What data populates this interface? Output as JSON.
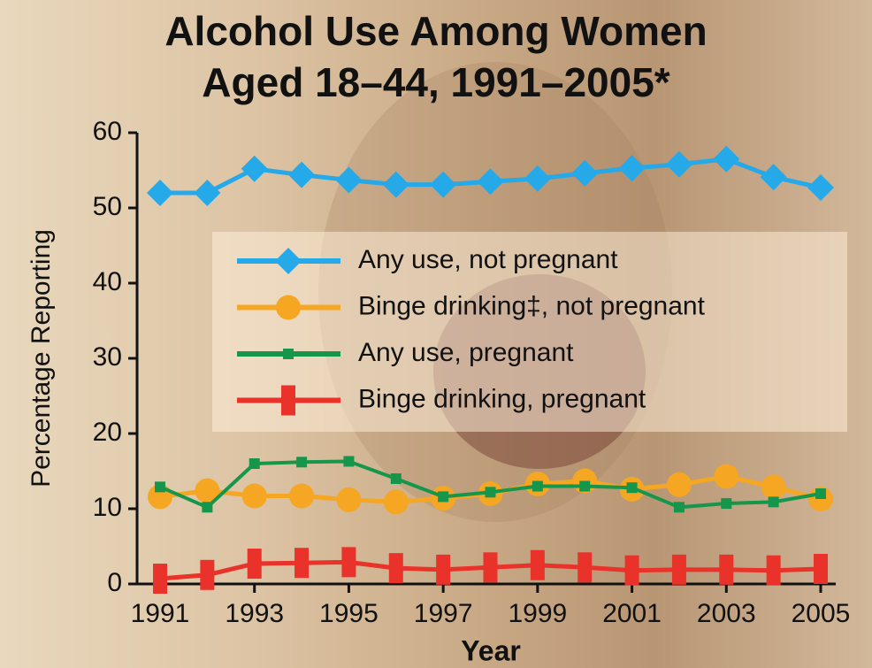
{
  "chart_data": {
    "type": "line",
    "title": "Alcohol Use Among Women\nAged 18–44, 1991–2005*",
    "x_label": "Year",
    "y_label": "Percentage Reporting",
    "x": [
      1991,
      1992,
      1993,
      1994,
      1995,
      1996,
      1997,
      1998,
      1999,
      2000,
      2001,
      2002,
      2003,
      2004,
      2005
    ],
    "xlim": [
      1991,
      2005
    ],
    "xticks": [
      1991,
      1993,
      1995,
      1997,
      1999,
      2001,
      2003,
      2005
    ],
    "ylim": [
      0,
      60
    ],
    "yticks": [
      0,
      10,
      20,
      30,
      40,
      50,
      60
    ],
    "legend_position": "right",
    "series": [
      {
        "name": "Any use, not pregnant",
        "color": "#25a9e8",
        "marker": "diamond",
        "values": [
          52.0,
          52.0,
          55.2,
          54.4,
          53.7,
          53.1,
          53.1,
          53.5,
          53.9,
          54.6,
          55.3,
          55.8,
          56.5,
          54.1,
          52.7
        ]
      },
      {
        "name": "Binge drinking‡, not pregnant",
        "color": "#f5a623",
        "marker": "circle",
        "values": [
          11.6,
          12.4,
          11.7,
          11.7,
          11.2,
          10.9,
          11.4,
          12.0,
          13.3,
          13.7,
          12.6,
          13.2,
          14.3,
          12.9,
          11.3
        ]
      },
      {
        "name": "Any use, pregnant",
        "color": "#16964a",
        "marker": "square",
        "values": [
          12.9,
          10.2,
          16.0,
          16.2,
          16.3,
          14.0,
          11.6,
          12.2,
          13.0,
          13.0,
          12.8,
          10.2,
          10.7,
          10.9,
          12.0
        ]
      },
      {
        "name": "Binge drinking, pregnant",
        "color": "#e8322a",
        "marker": "bar",
        "values": [
          0.7,
          1.2,
          2.7,
          2.8,
          2.9,
          2.1,
          1.9,
          2.2,
          2.5,
          2.2,
          1.8,
          1.9,
          1.9,
          1.8,
          2.0
        ]
      }
    ]
  }
}
